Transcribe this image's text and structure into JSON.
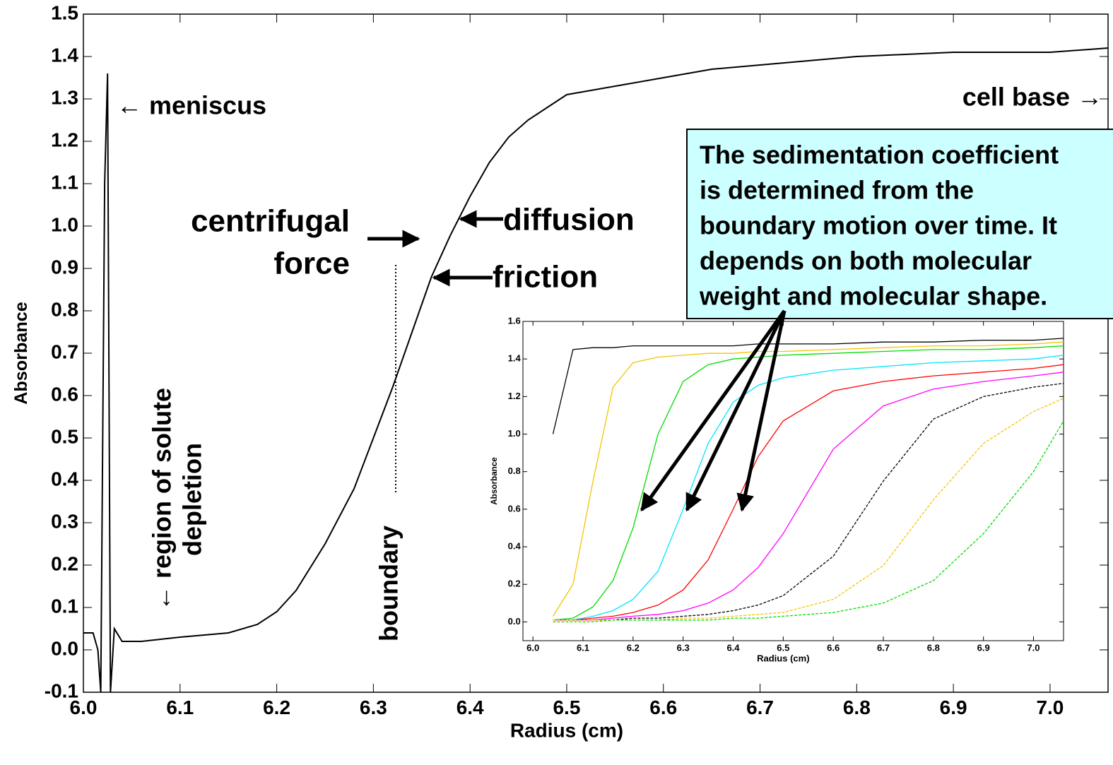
{
  "chart_data": [
    {
      "type": "line",
      "x_label": "Radius (cm)",
      "y_label": "Absorbance",
      "xlim": [
        6.0,
        7.06
      ],
      "ylim": [
        -0.1,
        1.5
      ],
      "xticks": [
        {
          "value": 6.0,
          "label": "6.0"
        },
        6.1,
        6.2,
        6.3,
        6.4,
        6.5,
        6.6,
        6.7,
        6.8,
        6.9,
        {
          "value": 7.0,
          "label": "7.0"
        }
      ],
      "yticks": [
        -0.1,
        {
          "value": 0.0,
          "label": "0.0"
        },
        0.1,
        0.2,
        0.3,
        0.4,
        0.5,
        0.6,
        0.7,
        0.8,
        0.9,
        {
          "value": 1.0,
          "label": "1.0"
        },
        1.1,
        1.2,
        1.3,
        1.4,
        1.5
      ],
      "x": [
        6.0,
        6.01,
        6.015,
        6.018,
        6.022,
        6.025,
        6.028,
        6.032,
        6.04,
        6.06,
        6.1,
        6.15,
        6.18,
        6.2,
        6.22,
        6.25,
        6.28,
        6.3,
        6.32,
        6.34,
        6.36,
        6.38,
        6.4,
        6.42,
        6.44,
        6.46,
        6.48,
        6.5,
        6.55,
        6.6,
        6.65,
        6.7,
        6.75,
        6.8,
        6.9,
        7.0,
        7.06
      ],
      "series": [
        {
          "color": "#000000",
          "values": [
            0.04,
            0.04,
            0.0,
            -0.1,
            1.1,
            1.36,
            -0.1,
            0.05,
            0.02,
            0.02,
            0.03,
            0.04,
            0.06,
            0.09,
            0.14,
            0.25,
            0.38,
            0.5,
            0.62,
            0.75,
            0.88,
            0.98,
            1.07,
            1.15,
            1.21,
            1.25,
            1.28,
            1.31,
            1.33,
            1.35,
            1.37,
            1.38,
            1.39,
            1.4,
            1.41,
            1.41,
            1.42
          ]
        }
      ],
      "annotations": [
        [
          "← meniscus"
        ],
        [
          "cell base →"
        ],
        [
          "centrifugal",
          "force"
        ],
        [
          "diffusion"
        ],
        [
          "friction"
        ],
        [
          "← region of solute",
          "depletion"
        ],
        [
          "boundary"
        ]
      ],
      "textbox": [
        "The sedimentation coefficient",
        "is determined from the",
        "boundary motion over time. It",
        "depends on both molecular",
        "weight and molecular shape."
      ]
    },
    {
      "type": "line",
      "x_label": "Radius (cm)",
      "y_label": "Absorbance",
      "xlim": [
        5.98,
        7.06
      ],
      "ylim": [
        -0.1,
        1.6
      ],
      "xticks": [
        {
          "value": 6.0,
          "label": "6.0"
        },
        6.1,
        6.2,
        6.3,
        6.4,
        6.5,
        6.6,
        6.7,
        6.8,
        6.9,
        {
          "value": 7.0,
          "label": "7.0"
        }
      ],
      "yticks": [
        {
          "value": 0.0,
          "label": "0.0"
        },
        0.2,
        0.4,
        0.6,
        0.8,
        {
          "value": 1.0,
          "label": "1.0"
        },
        1.2,
        1.4,
        1.6
      ],
      "x": [
        6.04,
        6.08,
        6.12,
        6.16,
        6.2,
        6.25,
        6.3,
        6.35,
        6.4,
        6.45,
        6.5,
        6.6,
        6.7,
        6.8,
        6.9,
        7.0,
        7.06
      ],
      "series": [
        {
          "color": "#000000",
          "dashed": false,
          "values": [
            1.0,
            1.45,
            1.46,
            1.46,
            1.47,
            1.47,
            1.47,
            1.47,
            1.47,
            1.48,
            1.48,
            1.48,
            1.49,
            1.49,
            1.5,
            1.5,
            1.51
          ]
        },
        {
          "color": "#f5c400",
          "dashed": false,
          "values": [
            0.03,
            0.2,
            0.75,
            1.25,
            1.38,
            1.41,
            1.42,
            1.43,
            1.43,
            1.44,
            1.44,
            1.45,
            1.46,
            1.47,
            1.47,
            1.48,
            1.49
          ]
        },
        {
          "color": "#00dd00",
          "dashed": false,
          "values": [
            0.01,
            0.02,
            0.08,
            0.22,
            0.5,
            1.0,
            1.28,
            1.37,
            1.4,
            1.41,
            1.42,
            1.43,
            1.44,
            1.45,
            1.45,
            1.46,
            1.47
          ]
        },
        {
          "color": "#00e5ff",
          "dashed": false,
          "values": [
            0.01,
            0.01,
            0.03,
            0.06,
            0.12,
            0.27,
            0.6,
            0.95,
            1.17,
            1.26,
            1.3,
            1.34,
            1.36,
            1.38,
            1.39,
            1.4,
            1.42
          ]
        },
        {
          "color": "#ff0000",
          "dashed": false,
          "values": [
            0.01,
            0.01,
            0.02,
            0.03,
            0.05,
            0.09,
            0.17,
            0.33,
            0.6,
            0.88,
            1.07,
            1.23,
            1.28,
            1.31,
            1.33,
            1.35,
            1.37
          ]
        },
        {
          "color": "#ff00ff",
          "dashed": false,
          "values": [
            0.01,
            0.01,
            0.01,
            0.02,
            0.03,
            0.04,
            0.06,
            0.1,
            0.17,
            0.29,
            0.47,
            0.92,
            1.15,
            1.24,
            1.28,
            1.31,
            1.33
          ]
        },
        {
          "color": "#000000",
          "dashed": true,
          "values": [
            0.01,
            0.01,
            0.01,
            0.01,
            0.02,
            0.02,
            0.03,
            0.04,
            0.06,
            0.09,
            0.14,
            0.35,
            0.75,
            1.08,
            1.2,
            1.25,
            1.27
          ]
        },
        {
          "color": "#f5c400",
          "dashed": true,
          "values": [
            0.01,
            0.01,
            0.01,
            0.01,
            0.01,
            0.01,
            0.02,
            0.02,
            0.03,
            0.04,
            0.05,
            0.12,
            0.3,
            0.65,
            0.95,
            1.12,
            1.19
          ]
        },
        {
          "color": "#00dd00",
          "dashed": true,
          "values": [
            0.0,
            0.0,
            0.0,
            0.01,
            0.01,
            0.01,
            0.01,
            0.01,
            0.02,
            0.02,
            0.03,
            0.05,
            0.1,
            0.22,
            0.47,
            0.8,
            1.07
          ]
        }
      ]
    }
  ]
}
